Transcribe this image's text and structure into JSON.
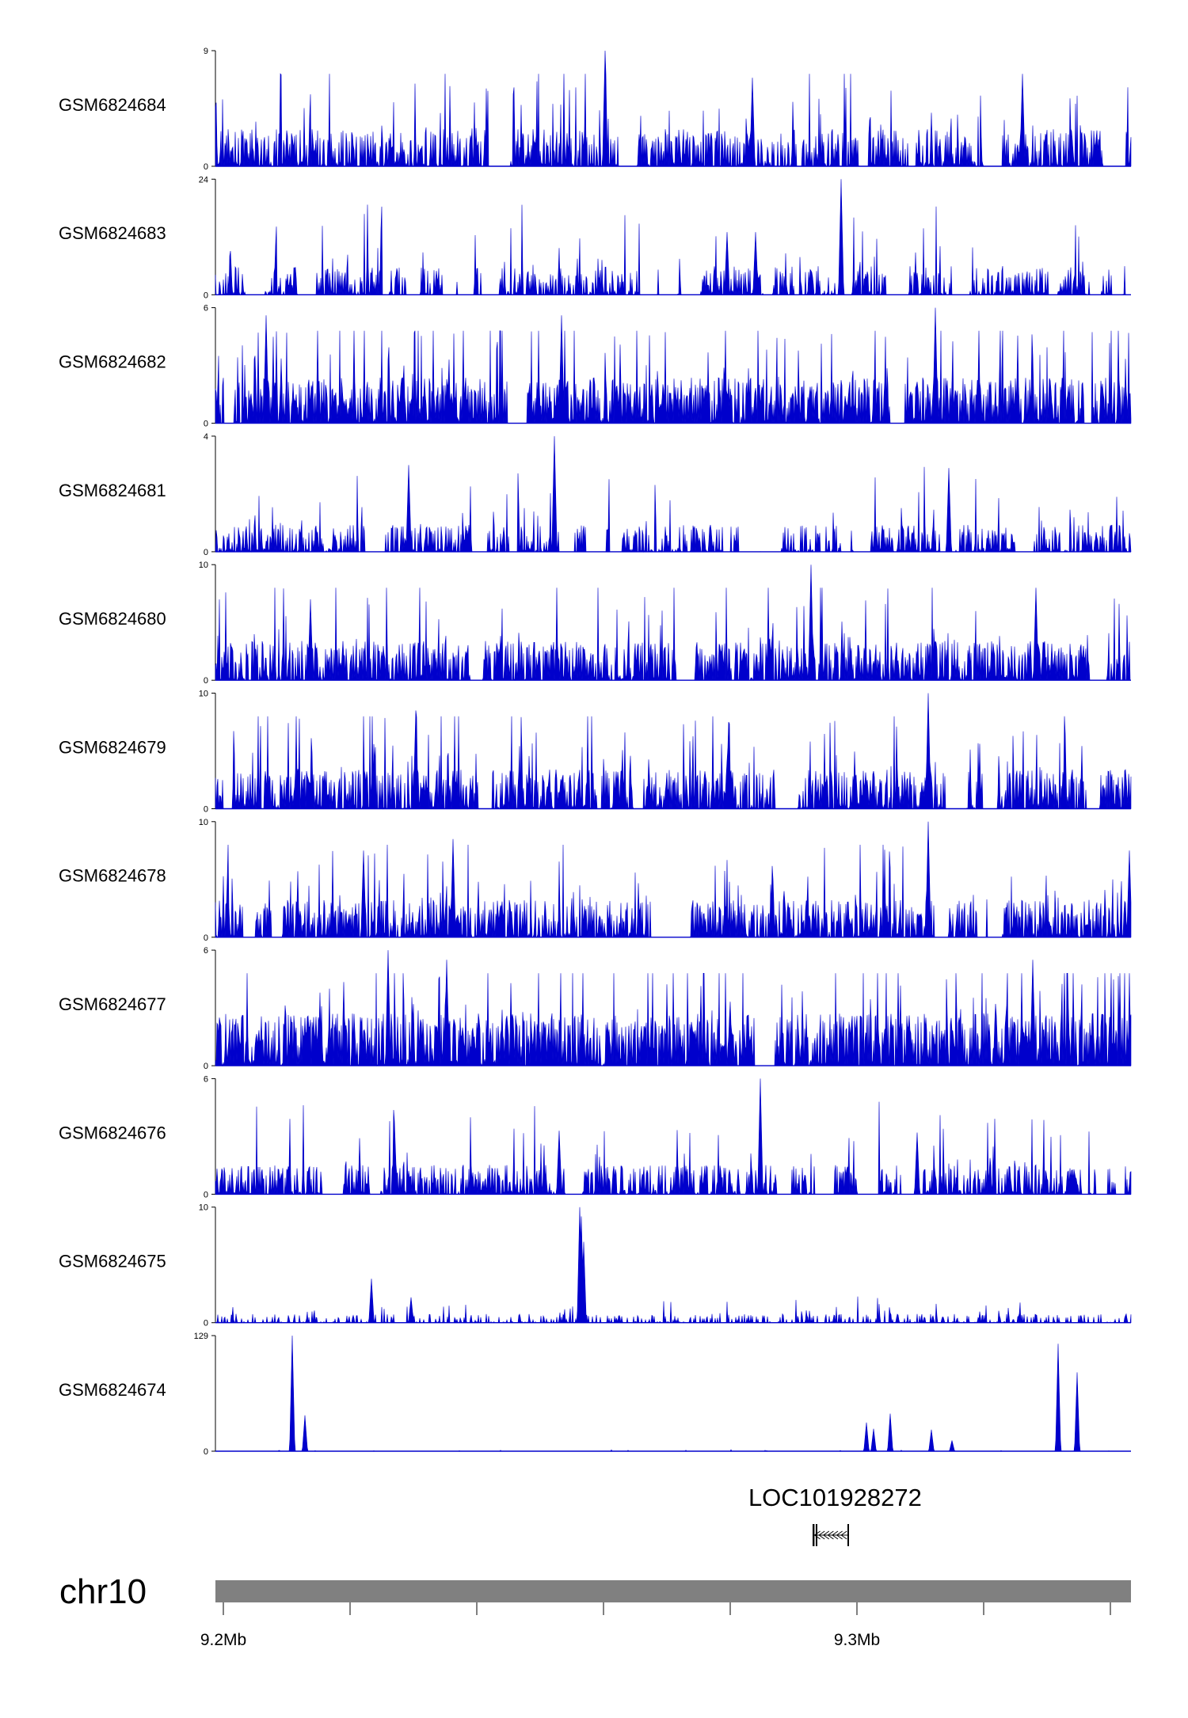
{
  "colors": {
    "signal": "#0000cc",
    "axis": "#000000",
    "ideogram": "#808080"
  },
  "chart_data": {
    "type": "area",
    "title": "",
    "chromosome": "chr10",
    "region_mb": [
      9.2,
      9.344
    ],
    "tracks": [
      {
        "name": "GSM6824684",
        "ymax": 9,
        "ymin": 0,
        "mean": 1.7,
        "spike": 0.55,
        "seed": 11,
        "gaps": 0.3,
        "peaks": [
          [
            9.2602,
            9.0
          ],
          [
            9.2835,
            6.9
          ],
          [
            9.3261,
            7.2
          ]
        ]
      },
      {
        "name": "GSM6824683",
        "ymax": 24,
        "ymin": 0,
        "mean": 3.5,
        "spike": 0.45,
        "seed": 23,
        "gaps": 0.6,
        "peaks": [
          [
            9.2975,
            24.0
          ],
          [
            9.2795,
            13.0
          ],
          [
            9.284,
            13.0
          ]
        ]
      },
      {
        "name": "GSM6824682",
        "ymax": 6,
        "ymin": 0,
        "mean": 1.4,
        "spike": 0.7,
        "seed": 37,
        "gaps": 0.15,
        "peaks": [
          [
            9.3124,
            6.0
          ],
          [
            9.2068,
            5.6
          ],
          [
            9.2534,
            5.6
          ]
        ]
      },
      {
        "name": "GSM6824681",
        "ymax": 4,
        "ymin": 0,
        "mean": 0.55,
        "spike": 0.5,
        "seed": 41,
        "gaps": 0.45,
        "peaks": [
          [
            9.2523,
            4.0
          ],
          [
            9.2293,
            3.0
          ],
          [
            9.3145,
            2.9
          ]
        ]
      },
      {
        "name": "GSM6824680",
        "ymax": 10,
        "ymin": 0,
        "mean": 2.0,
        "spike": 0.6,
        "seed": 53,
        "gaps": 0.25,
        "peaks": [
          [
            9.2927,
            10.0
          ],
          [
            9.3283,
            8.0
          ],
          [
            9.2137,
            7.0
          ]
        ]
      },
      {
        "name": "GSM6824679",
        "ymax": 10,
        "ymin": 0,
        "mean": 2.0,
        "spike": 0.6,
        "seed": 67,
        "gaps": 0.35,
        "peaks": [
          [
            9.3113,
            10.0
          ],
          [
            9.2304,
            8.5
          ],
          [
            9.2797,
            7.5
          ]
        ]
      },
      {
        "name": "GSM6824678",
        "ymax": 10,
        "ymin": 0,
        "mean": 1.9,
        "spike": 0.6,
        "seed": 79,
        "gaps": 0.25,
        "peaks": [
          [
            9.3113,
            10.0
          ],
          [
            9.2363,
            8.5
          ],
          [
            9.2221,
            7.5
          ],
          [
            9.343,
            7.5
          ]
        ]
      },
      {
        "name": "GSM6824677",
        "ymax": 6,
        "ymin": 0,
        "mean": 1.6,
        "spike": 0.7,
        "seed": 83,
        "gaps": 0.1,
        "peaks": [
          [
            9.226,
            6.0
          ],
          [
            9.2353,
            5.5
          ],
          [
            9.3277,
            5.5
          ]
        ]
      },
      {
        "name": "GSM6824676",
        "ymax": 6,
        "ymin": 0,
        "mean": 0.9,
        "spike": 0.55,
        "seed": 97,
        "gaps": 0.35,
        "peaks": [
          [
            9.2847,
            6.0
          ],
          [
            9.227,
            3.8
          ],
          [
            9.253,
            3.3
          ],
          [
            9.3095,
            3.2
          ]
        ]
      },
      {
        "name": "GSM6824675",
        "ymax": 10,
        "ymin": 0,
        "mean": 0.45,
        "spike": 0.25,
        "seed": 101,
        "gaps": 0.0,
        "peaks": [
          [
            9.2562,
            10.0
          ],
          [
            9.2565,
            9.2
          ],
          [
            9.2569,
            7.0
          ],
          [
            9.2234,
            3.8
          ],
          [
            9.2296,
            2.2
          ]
        ]
      },
      {
        "name": "GSM6824674",
        "ymax": 129,
        "ymin": 0,
        "mean": 0.8,
        "spike": 0.02,
        "seed": 113,
        "gaps": 0.0,
        "peaks": [
          [
            9.2109,
            129.0
          ],
          [
            9.2129,
            40.0
          ],
          [
            9.3015,
            32.0
          ],
          [
            9.3026,
            25.0
          ],
          [
            9.3052,
            42.0
          ],
          [
            9.3118,
            24.0
          ],
          [
            9.315,
            12.0
          ],
          [
            9.3318,
            120.0
          ],
          [
            9.3347,
            88.0
          ]
        ]
      }
    ],
    "gene": {
      "name": "LOC101928272",
      "strand": "-",
      "start_mb": 9.293,
      "end_mb": 9.2986,
      "exons_mb": [
        [
          9.293,
          9.2933
        ],
        [
          9.2935,
          9.2936
        ],
        [
          9.2985,
          9.2986
        ]
      ]
    },
    "genome_axis": {
      "ticks_mb": [
        9.2,
        9.22,
        9.24,
        9.26,
        9.28,
        9.3,
        9.32,
        9.34
      ],
      "tick_labels": [
        {
          "mb": 9.2,
          "label": "9.2Mb"
        },
        {
          "mb": 9.3,
          "label": "9.3Mb"
        }
      ]
    }
  }
}
